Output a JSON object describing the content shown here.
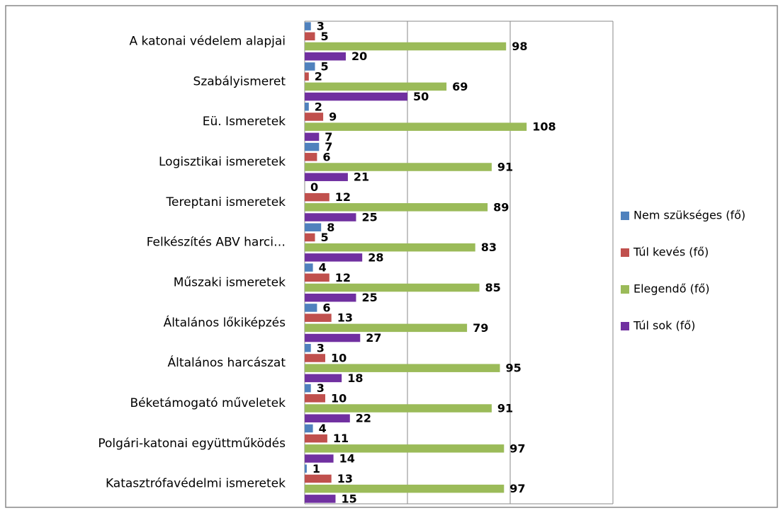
{
  "chart_data": {
    "type": "hbar",
    "categories": [
      "A katonai védelem alapjai",
      "Szabályismeret",
      "Eü. Ismeretek",
      "Logisztikai ismeretek",
      "Tereptani ismeretek",
      "Felkészítés ABV harci…",
      "Műszaki ismeretek",
      "Általános lőkiképzés",
      "Általános harcászat",
      "Béketámogató műveletek",
      "Polgári-katonai együttműködés",
      "Katasztrófavédelmi ismeretek"
    ],
    "series": [
      {
        "name": "Nem szükséges (fő)",
        "color": "#4f81bd",
        "values": [
          3,
          5,
          2,
          7,
          0,
          8,
          4,
          6,
          3,
          3,
          4,
          1
        ]
      },
      {
        "name": "Túl kevés (fő)",
        "color": "#c0504d",
        "values": [
          5,
          2,
          9,
          6,
          12,
          5,
          12,
          13,
          10,
          10,
          11,
          13
        ]
      },
      {
        "name": "Elegendő (fő)",
        "color": "#9bbb59",
        "values": [
          98,
          69,
          108,
          91,
          89,
          83,
          85,
          79,
          95,
          91,
          97,
          97
        ]
      },
      {
        "name": "Túl sok (fő)",
        "color": "#7030a0",
        "values": [
          20,
          50,
          7,
          21,
          25,
          28,
          25,
          27,
          18,
          22,
          14,
          15
        ]
      }
    ],
    "xlim": [
      0,
      150
    ],
    "xticks": [
      0,
      50,
      100,
      150
    ],
    "grid": true,
    "legend": "right"
  }
}
